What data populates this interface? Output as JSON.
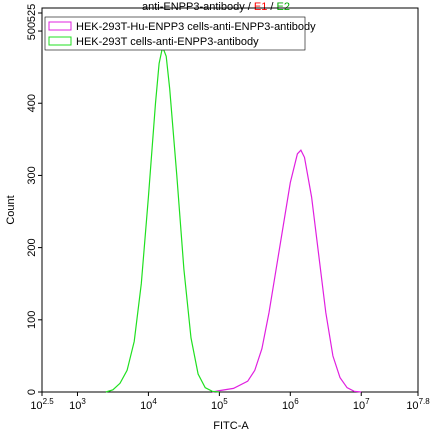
{
  "chart_data": {
    "type": "line",
    "title_parts": [
      {
        "text": "anti-ENPP3-antibody",
        "color": "#000000"
      },
      {
        "text": "/",
        "color": "#000000"
      },
      {
        "text": "E1",
        "color": "#ff0000"
      },
      {
        "text": "/",
        "color": "#000000"
      },
      {
        "text": "E2",
        "color": "#00aa00"
      }
    ],
    "x_label": "FITC-A",
    "y_label": "Count",
    "xscale": "log",
    "xlim": [
      316.2,
      63095700.0
    ],
    "xticks": [
      {
        "value": 316.2,
        "label": "10",
        "sup": "2.5"
      },
      {
        "value": 1000,
        "label": "10",
        "sup": "3"
      },
      {
        "value": 10000,
        "label": "10",
        "sup": "4"
      },
      {
        "value": 100000,
        "label": "10",
        "sup": "5"
      },
      {
        "value": 1000000,
        "label": "10",
        "sup": "6"
      },
      {
        "value": 10000000,
        "label": "10",
        "sup": "7"
      },
      {
        "value": 63095700,
        "label": "10",
        "sup": "7.8"
      }
    ],
    "ylim": [
      0,
      525
    ],
    "yticks": [
      0,
      100,
      200,
      300,
      400,
      500,
      525
    ],
    "legend": "top-left",
    "series": [
      {
        "name": "HEK-293T-Hu-ENPP3 cells-anti-ENPP3-antibody",
        "color": "#e020e0",
        "x": [
          79433,
          100000,
          158489,
          251189,
          316228,
          398107,
          501187,
          630957,
          794328,
          1000000,
          1258925,
          1412538,
          1584893,
          1995262,
          2511886,
          3162278,
          3981072,
          5011872,
          6309573,
          7943282,
          10000000
        ],
        "values": [
          0,
          2,
          5,
          15,
          30,
          60,
          110,
          170,
          230,
          290,
          330,
          335,
          325,
          270,
          190,
          110,
          50,
          20,
          6,
          1,
          0
        ]
      },
      {
        "name": "HEK-293T cells-anti-ENPP3-antibody",
        "color": "#20e020",
        "x": [
          2512,
          3162,
          3981,
          5012,
          6310,
          7943,
          10000,
          12589,
          14125,
          15849,
          17783,
          19953,
          25119,
          31623,
          39811,
          50119,
          63096,
          79433,
          100000
        ],
        "values": [
          0,
          3,
          12,
          30,
          70,
          150,
          270,
          400,
          455,
          478,
          465,
          420,
          300,
          170,
          75,
          25,
          6,
          1,
          0
        ]
      }
    ]
  }
}
